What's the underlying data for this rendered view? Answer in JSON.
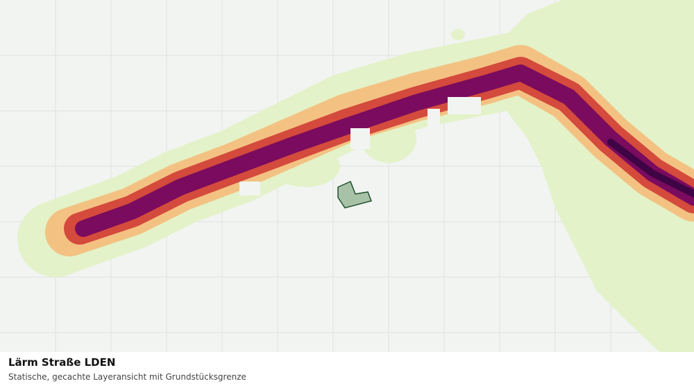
{
  "title": "Lärm Straße LDEN",
  "subtitle": "Statische, gecachte Layeransicht mit Grundstücksgrenze"
}
